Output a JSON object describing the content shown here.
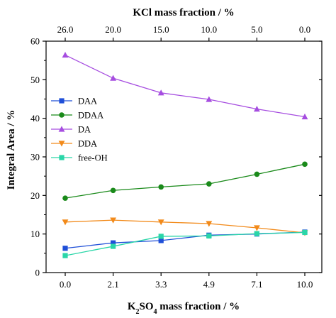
{
  "chart_data": {
    "type": "line",
    "x": [
      "0.0",
      "2.1",
      "3.3",
      "4.9",
      "7.1",
      "10.0"
    ],
    "x_top": [
      "26.0",
      "20.0",
      "15.0",
      "10.0",
      "5.0",
      "0.0"
    ],
    "xlabel_top": "KCl mass fraction / %",
    "xlabel": {
      "prefix": "K",
      "sub1": "2",
      "mid": "SO",
      "sub2": "4",
      "suffix": " mass fraction / %"
    },
    "ylabel": "Integral Area / %",
    "ylim": [
      0,
      60
    ],
    "yticks": [
      0,
      10,
      20,
      30,
      40,
      50,
      60
    ],
    "grid": false,
    "legend_position": "left",
    "series": [
      {
        "name": "DAA",
        "color": "#1f4fd8",
        "marker": "square",
        "values": [
          6.3,
          7.7,
          8.3,
          9.7,
          10.0,
          10.5
        ]
      },
      {
        "name": "DDAA",
        "color": "#1a8a1a",
        "marker": "circle",
        "values": [
          19.3,
          21.3,
          22.2,
          23.0,
          25.5,
          28.1
        ]
      },
      {
        "name": "DA",
        "color": "#a64de0",
        "marker": "triangle-up",
        "values": [
          56.4,
          50.4,
          46.6,
          44.9,
          42.4,
          40.4
        ]
      },
      {
        "name": "DDA",
        "color": "#f28a1a",
        "marker": "triangle-down",
        "values": [
          13.1,
          13.6,
          13.1,
          12.7,
          11.6,
          10.3
        ]
      },
      {
        "name": "free-OH",
        "color": "#2ad6a8",
        "marker": "square",
        "values": [
          4.4,
          6.8,
          9.4,
          9.5,
          10.1,
          10.4
        ]
      }
    ]
  }
}
